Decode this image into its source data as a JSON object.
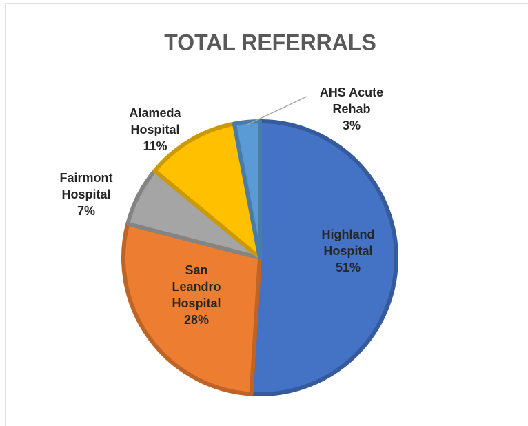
{
  "chart_data": {
    "type": "pie",
    "title": "TOTAL REFERRALS",
    "categories": [
      "Highland Hospital",
      "San Leandro Hospital",
      "Fairmont Hospital",
      "Alameda Hospital",
      "AHS Acute Rehab"
    ],
    "values": [
      51,
      28,
      7,
      11,
      3
    ],
    "value_labels": [
      "51%",
      "28%",
      "7%",
      "11%",
      "3%"
    ],
    "colors": [
      "#4472c4",
      "#ed7d31",
      "#a5a5a5",
      "#ffc000",
      "#5b9bd5"
    ]
  }
}
